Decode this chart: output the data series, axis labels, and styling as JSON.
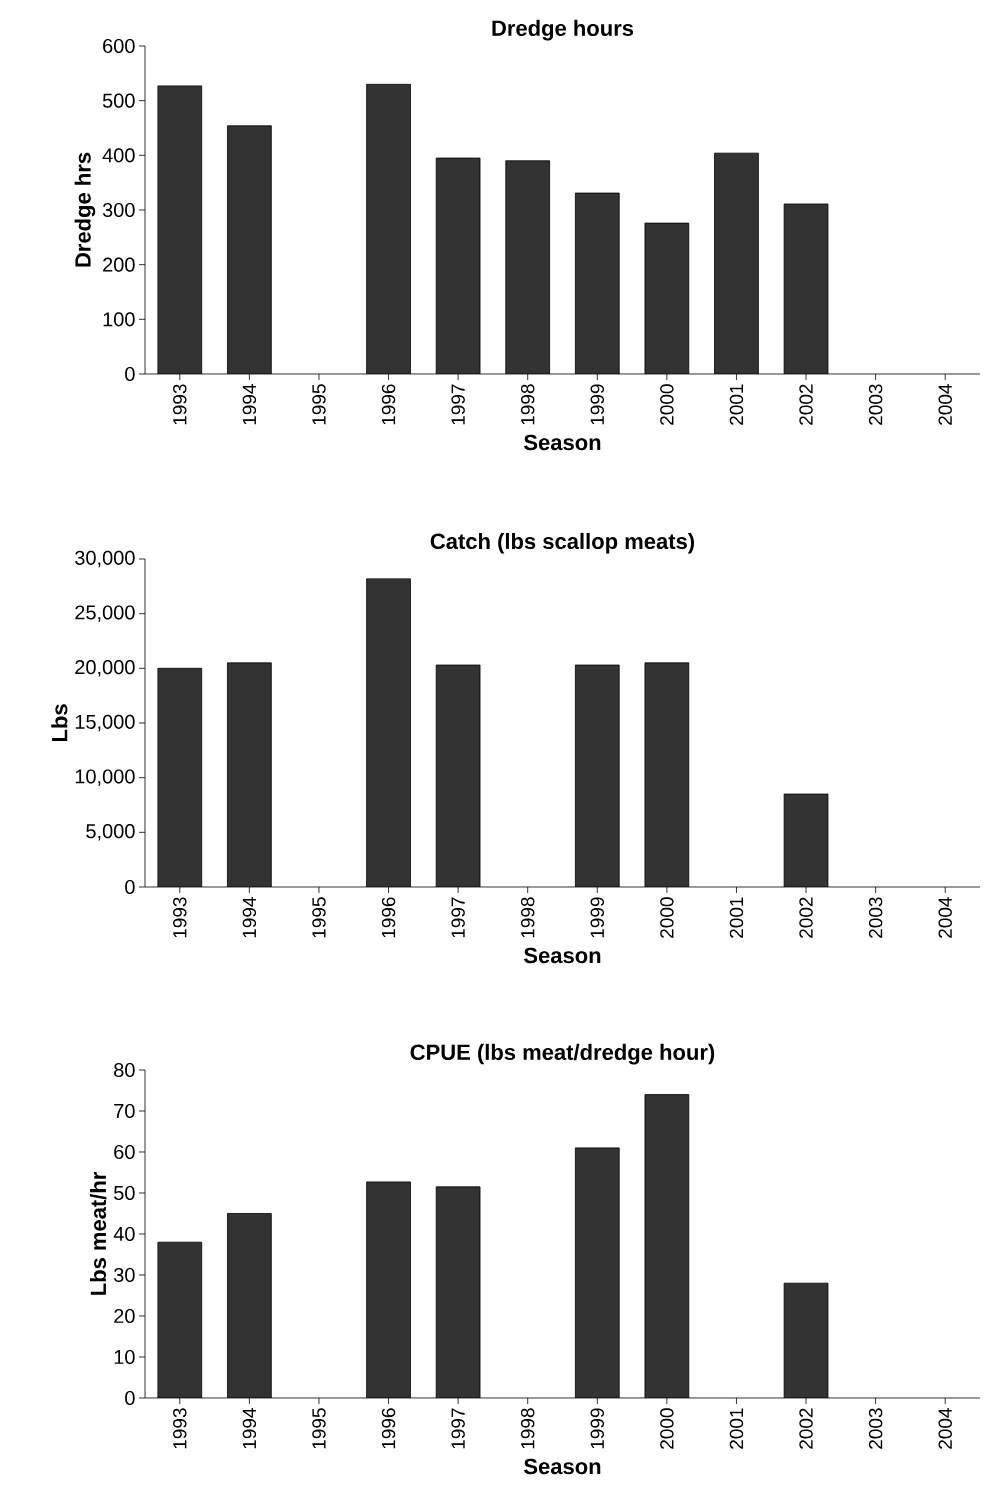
{
  "chart_data": [
    {
      "type": "bar",
      "title": "Dredge hours",
      "xlabel": "Season",
      "ylabel": "Dredge hrs",
      "color": "#333333",
      "categories": [
        "1993",
        "1994",
        "1995",
        "1996",
        "1997",
        "1998",
        "1999",
        "2000",
        "2001",
        "2002",
        "2003",
        "2004"
      ],
      "values": [
        527,
        454,
        null,
        530,
        395,
        390,
        331,
        276,
        404,
        311,
        null,
        null
      ],
      "ylim": [
        0,
        600
      ],
      "yticks": [
        0,
        100,
        200,
        300,
        400,
        500,
        600
      ]
    },
    {
      "type": "bar",
      "title": "Catch (lbs scallop meats)",
      "xlabel": "Season",
      "ylabel": "Lbs",
      "color": "#333333",
      "categories": [
        "1993",
        "1994",
        "1995",
        "1996",
        "1997",
        "1998",
        "1999",
        "2000",
        "2001",
        "2002",
        "2003",
        "2004"
      ],
      "values": [
        20000,
        20500,
        null,
        28200,
        20300,
        null,
        20300,
        20500,
        null,
        8500,
        null,
        null
      ],
      "ylim": [
        0,
        30000
      ],
      "yticks": [
        0,
        {
          "value": 5000,
          "label": "5,000"
        },
        {
          "value": 10000,
          "label": "10,000"
        },
        {
          "value": 15000,
          "label": "15,000"
        },
        {
          "value": 20000,
          "label": "20,000"
        },
        {
          "value": 25000,
          "label": "25,000"
        },
        {
          "value": 30000,
          "label": "30,000"
        }
      ]
    },
    {
      "type": "bar",
      "title": "CPUE (lbs meat/dredge hour)",
      "xlabel": "Season",
      "ylabel": "Lbs meat/hr",
      "color": "#333333",
      "categories": [
        "1993",
        "1994",
        "1995",
        "1996",
        "1997",
        "1998",
        "1999",
        "2000",
        "2001",
        "2002",
        "2003",
        "2004"
      ],
      "values": [
        38,
        45,
        null,
        52.7,
        51.5,
        null,
        61,
        74,
        null,
        28,
        null,
        null
      ],
      "ylim": [
        0,
        80
      ],
      "yticks": [
        0,
        10,
        20,
        30,
        40,
        50,
        60,
        70,
        80
      ]
    }
  ]
}
